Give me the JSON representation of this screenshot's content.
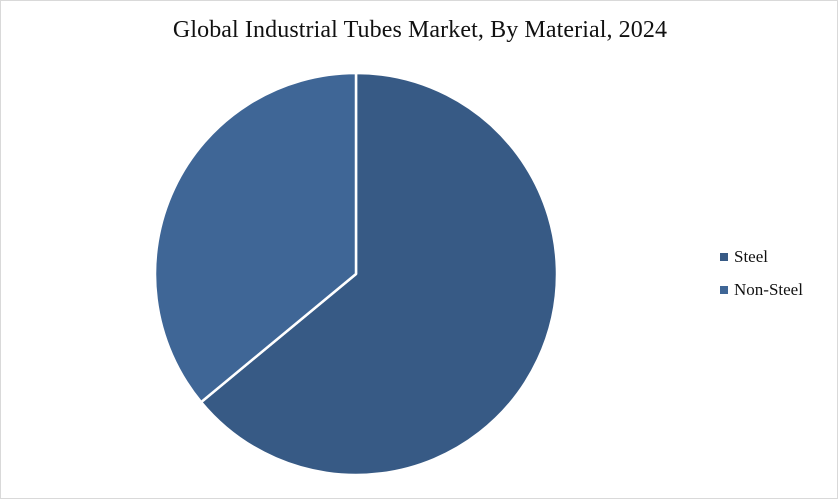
{
  "chart_data": {
    "type": "pie",
    "title": "Global Industrial Tubes Market, By Material, 2024",
    "categories": [
      "Steel",
      "Non-Steel"
    ],
    "values": [
      64,
      36
    ],
    "unit": "%",
    "start_angle_deg": 0,
    "direction": "clockwise",
    "colors": [
      "#375a85",
      "#3f6696"
    ],
    "legend_position": "right"
  }
}
